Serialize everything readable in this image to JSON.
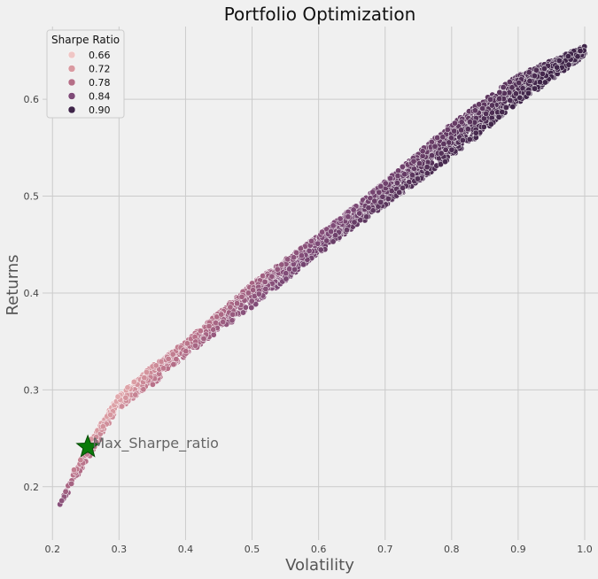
{
  "chart_data": {
    "type": "scatter",
    "title": "Portfolio Optimization",
    "xlabel": "Volatility",
    "ylabel": "Returns",
    "xlim": [
      0.185,
      1.02
    ],
    "ylim": [
      0.145,
      0.675
    ],
    "xticks": [
      "0.2",
      "0.3",
      "0.4",
      "0.5",
      "0.6",
      "0.7",
      "0.8",
      "0.9",
      "1.0"
    ],
    "yticks": [
      "0.2",
      "0.3",
      "0.4",
      "0.5",
      "0.6"
    ],
    "grid": true,
    "legend": {
      "title": "Sharpe Ratio",
      "placement": "top-left",
      "entries": [
        {
          "label": "0.66",
          "color": "#efc6c5"
        },
        {
          "label": "0.72",
          "color": "#d99aa1"
        },
        {
          "label": "0.78",
          "color": "#b56e87"
        },
        {
          "label": "0.84",
          "color": "#7e4a77"
        },
        {
          "label": "0.90",
          "color": "#3f2549"
        }
      ]
    },
    "frontier": {
      "upper": [
        [
          0.21,
          0.18
        ],
        [
          0.23,
          0.215
        ],
        [
          0.25,
          0.24
        ],
        [
          0.3,
          0.295
        ],
        [
          0.35,
          0.325
        ],
        [
          0.4,
          0.35
        ],
        [
          0.5,
          0.41
        ],
        [
          0.6,
          0.46
        ],
        [
          0.7,
          0.515
        ],
        [
          0.8,
          0.575
        ],
        [
          0.9,
          0.625
        ],
        [
          1.0,
          0.655
        ]
      ],
      "lower": [
        [
          0.21,
          0.18
        ],
        [
          0.23,
          0.2
        ],
        [
          0.25,
          0.225
        ],
        [
          0.3,
          0.28
        ],
        [
          0.35,
          0.305
        ],
        [
          0.4,
          0.335
        ],
        [
          0.5,
          0.385
        ],
        [
          0.6,
          0.44
        ],
        [
          0.7,
          0.49
        ],
        [
          0.8,
          0.54
        ],
        [
          0.9,
          0.595
        ],
        [
          1.0,
          0.645
        ]
      ],
      "sharpe_range": [
        0.63,
        0.93
      ]
    },
    "max_sharpe": {
      "x": 0.253,
      "y": 0.241,
      "label": "Max_Sharpe_ratio",
      "color": "#0a7a0a"
    }
  }
}
